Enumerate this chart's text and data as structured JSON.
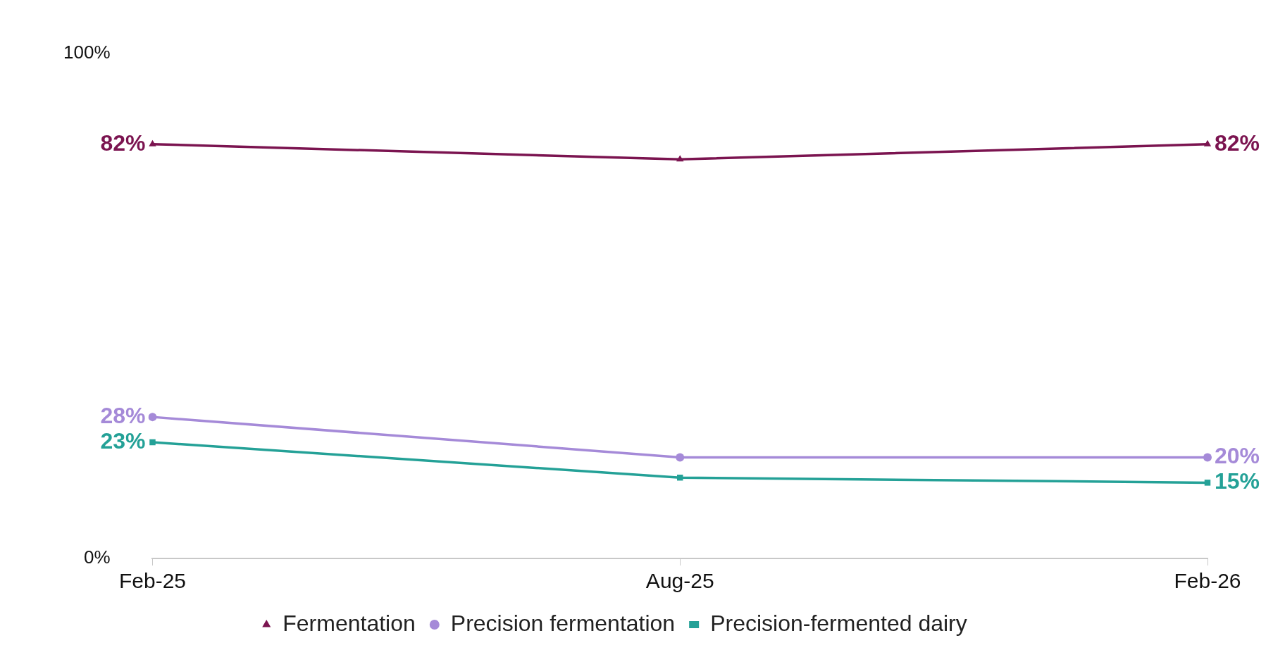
{
  "chart_data": {
    "type": "line",
    "categories": [
      "Feb-25",
      "Aug-25",
      "Feb-26"
    ],
    "ylim": [
      0,
      100
    ],
    "yticks": [
      {
        "value": 0,
        "label": "0%"
      },
      {
        "value": 100,
        "label": "100%"
      }
    ],
    "grid": false,
    "legend": "bottom",
    "line_style": "solid",
    "series": [
      {
        "name": "Fermentation",
        "color": "#7b1450",
        "marker": "triangle",
        "values": [
          82,
          79,
          82
        ],
        "value_labels": [
          "82%",
          null,
          "82%"
        ]
      },
      {
        "name": "Precision fermentation",
        "color": "#a58ad8",
        "marker": "circle",
        "values": [
          28,
          20,
          20
        ],
        "value_labels": [
          "28%",
          null,
          "20%"
        ]
      },
      {
        "name": "Precision-fermented dairy",
        "color": "#24a197",
        "marker": "square",
        "values": [
          23,
          16,
          15
        ],
        "value_labels": [
          "23%",
          null,
          "15%"
        ]
      }
    ]
  }
}
